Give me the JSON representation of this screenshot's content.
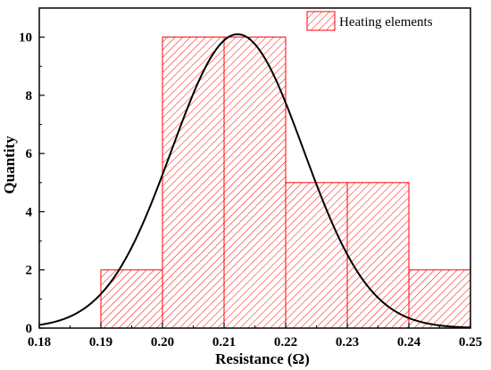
{
  "chart_data": {
    "type": "bar",
    "subtype": "histogram-with-normal-fit",
    "title": "",
    "xlabel": "Resistance (Ω)",
    "ylabel": "Quantity",
    "xlim": [
      0.18,
      0.25
    ],
    "ylim": [
      0,
      11
    ],
    "x_ticks": [
      "0.18",
      "0.19",
      "0.20",
      "0.21",
      "0.22",
      "0.23",
      "0.24",
      "0.25"
    ],
    "y_ticks": [
      "0",
      "2",
      "4",
      "6",
      "8",
      "10"
    ],
    "bins": [
      {
        "from": 0.19,
        "to": 0.2,
        "count": 2
      },
      {
        "from": 0.2,
        "to": 0.21,
        "count": 10
      },
      {
        "from": 0.21,
        "to": 0.22,
        "count": 10
      },
      {
        "from": 0.22,
        "to": 0.23,
        "count": 5
      },
      {
        "from": 0.23,
        "to": 0.24,
        "count": 5
      },
      {
        "from": 0.24,
        "to": 0.25,
        "count": 2
      }
    ],
    "fit_curve": {
      "type": "normal",
      "peak": 10.1,
      "mean": 0.2122,
      "sd": 0.0107
    },
    "legend": {
      "position": "top-right",
      "entries": [
        "Heating elements"
      ]
    },
    "bar_color": "#ff0000",
    "curve_color": "#000000",
    "grid": false
  }
}
